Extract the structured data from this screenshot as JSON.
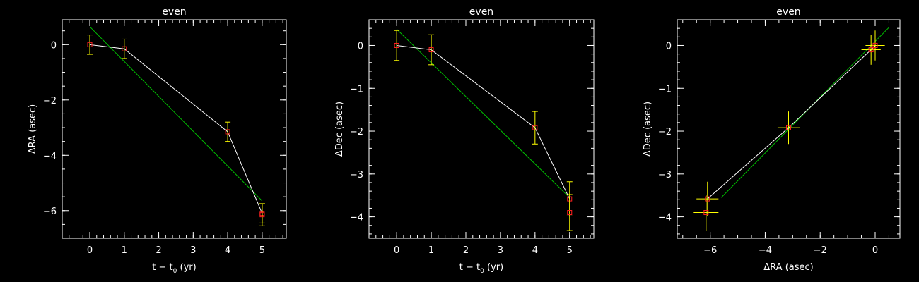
{
  "chart_data": [
    {
      "type": "line",
      "title": "even",
      "xlabel": "t − t",
      "xlabel_sub": "0",
      "xlabel_unit": " (yr)",
      "ylabel": "ΔRA (asec)",
      "xlim": [
        -0.8,
        5.7
      ],
      "ylim": [
        -7.0,
        0.9
      ],
      "xticks": [
        0,
        1,
        2,
        3,
        4,
        5
      ],
      "yticks": [
        0,
        -2,
        -4,
        -6
      ],
      "colors": {
        "data": "#ff2020",
        "errorbar": "#ffff00",
        "path": "#ffffff",
        "fit": "#00c000"
      },
      "series": [
        {
          "role": "data",
          "x": [
            0,
            1,
            4,
            5,
            5
          ],
          "y": [
            0.0,
            -0.15,
            -3.15,
            -6.1,
            -6.15
          ],
          "yerr": [
            0.35,
            0.35,
            0.35,
            0.35,
            0.4
          ]
        },
        {
          "role": "path",
          "x": [
            0,
            1,
            4,
            5
          ],
          "y": [
            0.0,
            -0.15,
            -3.15,
            -6.1
          ]
        },
        {
          "role": "fit",
          "x": [
            0,
            5
          ],
          "y": [
            0.65,
            -5.65
          ]
        }
      ]
    },
    {
      "type": "line",
      "title": "even",
      "xlabel": "t − t",
      "xlabel_sub": "0",
      "xlabel_unit": " (yr)",
      "ylabel": "ΔDec (asec)",
      "xlim": [
        -0.8,
        5.7
      ],
      "ylim": [
        -4.5,
        0.6
      ],
      "xticks": [
        0,
        1,
        2,
        3,
        4,
        5
      ],
      "yticks": [
        0,
        -1,
        -2,
        -3,
        -4
      ],
      "colors": {
        "data": "#ff2020",
        "errorbar": "#ffff00",
        "path": "#ffffff",
        "fit": "#00c000"
      },
      "series": [
        {
          "role": "data",
          "x": [
            0,
            1,
            4,
            5,
            5
          ],
          "y": [
            0.0,
            -0.1,
            -1.92,
            -3.58,
            -3.9
          ],
          "yerr": [
            0.35,
            0.35,
            0.38,
            0.4,
            0.42
          ]
        },
        {
          "role": "path",
          "x": [
            0,
            1,
            4,
            5
          ],
          "y": [
            0.0,
            -0.1,
            -1.92,
            -3.58
          ]
        },
        {
          "role": "fit",
          "x": [
            0,
            5
          ],
          "y": [
            0.38,
            -3.55
          ]
        }
      ]
    },
    {
      "type": "scatter",
      "title": "even",
      "xlabel": "ΔRA (asec)",
      "ylabel": "ΔDec (asec)",
      "xlim": [
        -7.2,
        0.9
      ],
      "ylim": [
        -4.5,
        0.6
      ],
      "xticks": [
        -6,
        -4,
        -2,
        0
      ],
      "yticks": [
        0,
        -1,
        -2,
        -3,
        -4
      ],
      "colors": {
        "data": "#ff2020",
        "errorbar": "#ffff00",
        "path": "#ffffff",
        "fit": "#00c000"
      },
      "series": [
        {
          "role": "data",
          "x": [
            0.0,
            -0.15,
            -3.15,
            -6.1,
            -6.15
          ],
          "y": [
            0.0,
            -0.1,
            -1.92,
            -3.58,
            -3.9
          ],
          "xerr": [
            0.35,
            0.35,
            0.4,
            0.4,
            0.45
          ],
          "yerr": [
            0.35,
            0.35,
            0.38,
            0.4,
            0.42
          ]
        },
        {
          "role": "path",
          "x": [
            0.0,
            -0.15,
            -3.15,
            -6.1
          ],
          "y": [
            0.0,
            -0.1,
            -1.92,
            -3.58
          ]
        },
        {
          "role": "fit",
          "x": [
            0.5,
            -5.6
          ],
          "y": [
            0.42,
            -3.55
          ]
        }
      ]
    }
  ]
}
